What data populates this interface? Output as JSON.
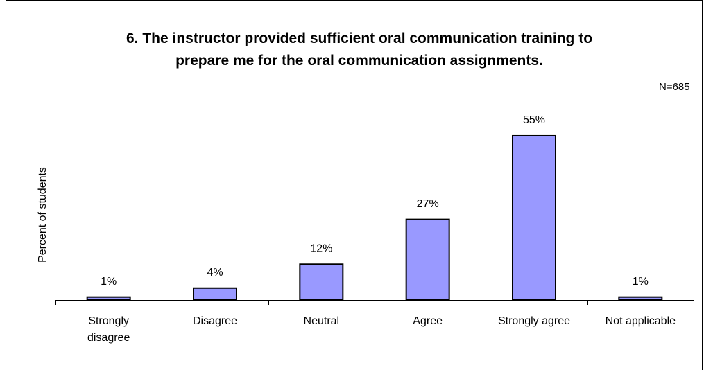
{
  "chart_data": {
    "type": "bar",
    "title": "6. The instructor provided sufficient oral communication training to prepare me for the oral communication assignments.",
    "annotation": "N=685",
    "y_label": "Percent of students",
    "categories": [
      "Strongly disagree",
      "Disagree",
      "Neutral",
      "Agree",
      "Strongly agree",
      "Not applicable"
    ],
    "values": [
      1,
      4,
      12,
      27,
      55,
      1
    ],
    "value_labels": [
      "1%",
      "4%",
      "12%",
      "27%",
      "55%",
      "1%"
    ],
    "color": "#9999ff"
  }
}
